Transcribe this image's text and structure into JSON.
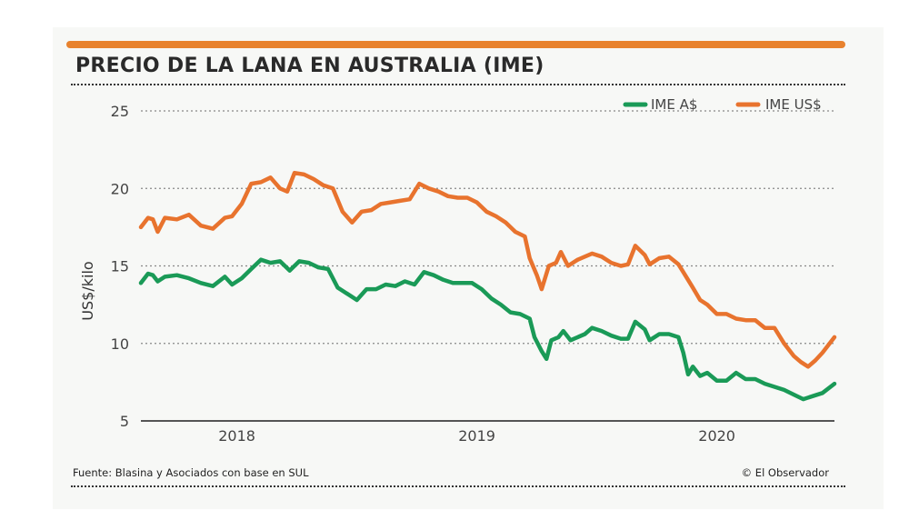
{
  "header": {
    "title": "PRECIO DE LA LANA EN AUSTRALIA (IME)"
  },
  "footer": {
    "source": "Fuente: Blasina y Asociados con base en SUL",
    "credit": "© El Observador"
  },
  "colors": {
    "accent": "#e8822e",
    "green": "#1a9a57",
    "orange": "#e8732e",
    "grid": "#888888"
  },
  "chart_data": {
    "type": "line",
    "title": "PRECIO DE LA LANA EN AUSTRALIA (IME)",
    "xlabel": "",
    "ylabel": "US$/kilo",
    "ylim": [
      5,
      25
    ],
    "yticks": [
      5,
      10,
      15,
      20,
      25
    ],
    "xlim": [
      2017.6,
      2020.49
    ],
    "xticks": [
      2018,
      2019,
      2020
    ],
    "xtick_labels": [
      "2018",
      "2019",
      "2020"
    ],
    "grid": "horizontal dotted",
    "legend": "top-right",
    "series": [
      {
        "name": "IME A$",
        "color": "#1a9a57",
        "points": [
          [
            2017.6,
            13.9
          ],
          [
            2017.63,
            14.5
          ],
          [
            2017.65,
            14.4
          ],
          [
            2017.67,
            14.0
          ],
          [
            2017.7,
            14.3
          ],
          [
            2017.75,
            14.4
          ],
          [
            2017.8,
            14.2
          ],
          [
            2017.85,
            13.9
          ],
          [
            2017.9,
            13.7
          ],
          [
            2017.95,
            14.3
          ],
          [
            2017.98,
            13.8
          ],
          [
            2018.02,
            14.2
          ],
          [
            2018.06,
            14.8
          ],
          [
            2018.1,
            15.4
          ],
          [
            2018.14,
            15.2
          ],
          [
            2018.18,
            15.3
          ],
          [
            2018.22,
            14.7
          ],
          [
            2018.26,
            15.3
          ],
          [
            2018.3,
            15.2
          ],
          [
            2018.34,
            14.9
          ],
          [
            2018.38,
            14.8
          ],
          [
            2018.42,
            13.6
          ],
          [
            2018.46,
            13.2
          ],
          [
            2018.5,
            12.8
          ],
          [
            2018.54,
            13.5
          ],
          [
            2018.58,
            13.5
          ],
          [
            2018.62,
            13.8
          ],
          [
            2018.66,
            13.7
          ],
          [
            2018.7,
            14.0
          ],
          [
            2018.74,
            13.8
          ],
          [
            2018.78,
            14.6
          ],
          [
            2018.82,
            14.4
          ],
          [
            2018.86,
            14.1
          ],
          [
            2018.9,
            13.9
          ],
          [
            2018.94,
            13.9
          ],
          [
            2018.98,
            13.9
          ],
          [
            2019.02,
            13.5
          ],
          [
            2019.06,
            12.9
          ],
          [
            2019.1,
            12.5
          ],
          [
            2019.14,
            12.0
          ],
          [
            2019.18,
            11.9
          ],
          [
            2019.22,
            11.6
          ],
          [
            2019.24,
            10.4
          ],
          [
            2019.27,
            9.5
          ],
          [
            2019.29,
            9.0
          ],
          [
            2019.31,
            10.2
          ],
          [
            2019.34,
            10.4
          ],
          [
            2019.36,
            10.8
          ],
          [
            2019.39,
            10.2
          ],
          [
            2019.42,
            10.4
          ],
          [
            2019.45,
            10.6
          ],
          [
            2019.48,
            11.0
          ],
          [
            2019.52,
            10.8
          ],
          [
            2019.56,
            10.5
          ],
          [
            2019.6,
            10.3
          ],
          [
            2019.63,
            10.3
          ],
          [
            2019.66,
            11.4
          ],
          [
            2019.7,
            10.9
          ],
          [
            2019.72,
            10.2
          ],
          [
            2019.76,
            10.6
          ],
          [
            2019.8,
            10.6
          ],
          [
            2019.84,
            10.4
          ],
          [
            2019.86,
            9.4
          ],
          [
            2019.88,
            8.0
          ],
          [
            2019.9,
            8.5
          ],
          [
            2019.93,
            7.9
          ],
          [
            2019.96,
            8.1
          ],
          [
            2020.0,
            7.6
          ],
          [
            2020.04,
            7.6
          ],
          [
            2020.08,
            8.1
          ],
          [
            2020.12,
            7.7
          ],
          [
            2020.16,
            7.7
          ],
          [
            2020.2,
            7.4
          ],
          [
            2020.24,
            7.2
          ],
          [
            2020.28,
            7.0
          ],
          [
            2020.32,
            6.7
          ],
          [
            2020.36,
            6.4
          ],
          [
            2020.4,
            6.6
          ],
          [
            2020.44,
            6.8
          ],
          [
            2020.49,
            7.4
          ]
        ]
      },
      {
        "name": "IME US$",
        "color": "#e8732e",
        "points": [
          [
            2017.6,
            17.5
          ],
          [
            2017.63,
            18.1
          ],
          [
            2017.65,
            18.0
          ],
          [
            2017.67,
            17.2
          ],
          [
            2017.7,
            18.1
          ],
          [
            2017.75,
            18.0
          ],
          [
            2017.8,
            18.3
          ],
          [
            2017.85,
            17.6
          ],
          [
            2017.9,
            17.4
          ],
          [
            2017.95,
            18.1
          ],
          [
            2017.98,
            18.2
          ],
          [
            2018.02,
            19.0
          ],
          [
            2018.06,
            20.3
          ],
          [
            2018.1,
            20.4
          ],
          [
            2018.14,
            20.7
          ],
          [
            2018.18,
            20.0
          ],
          [
            2018.21,
            19.8
          ],
          [
            2018.24,
            21.0
          ],
          [
            2018.28,
            20.9
          ],
          [
            2018.32,
            20.6
          ],
          [
            2018.36,
            20.2
          ],
          [
            2018.4,
            20.0
          ],
          [
            2018.44,
            18.5
          ],
          [
            2018.48,
            17.8
          ],
          [
            2018.52,
            18.5
          ],
          [
            2018.56,
            18.6
          ],
          [
            2018.6,
            19.0
          ],
          [
            2018.64,
            19.1
          ],
          [
            2018.68,
            19.2
          ],
          [
            2018.72,
            19.3
          ],
          [
            2018.76,
            20.3
          ],
          [
            2018.8,
            20.0
          ],
          [
            2018.84,
            19.8
          ],
          [
            2018.88,
            19.5
          ],
          [
            2018.92,
            19.4
          ],
          [
            2018.96,
            19.4
          ],
          [
            2019.0,
            19.1
          ],
          [
            2019.04,
            18.5
          ],
          [
            2019.08,
            18.2
          ],
          [
            2019.12,
            17.8
          ],
          [
            2019.16,
            17.2
          ],
          [
            2019.2,
            16.9
          ],
          [
            2019.22,
            15.5
          ],
          [
            2019.25,
            14.4
          ],
          [
            2019.27,
            13.5
          ],
          [
            2019.3,
            15.0
          ],
          [
            2019.33,
            15.2
          ],
          [
            2019.35,
            15.9
          ],
          [
            2019.38,
            15.0
          ],
          [
            2019.42,
            15.4
          ],
          [
            2019.45,
            15.6
          ],
          [
            2019.48,
            15.8
          ],
          [
            2019.52,
            15.6
          ],
          [
            2019.56,
            15.2
          ],
          [
            2019.6,
            15.0
          ],
          [
            2019.63,
            15.1
          ],
          [
            2019.66,
            16.3
          ],
          [
            2019.7,
            15.7
          ],
          [
            2019.72,
            15.1
          ],
          [
            2019.76,
            15.5
          ],
          [
            2019.8,
            15.6
          ],
          [
            2019.84,
            15.1
          ],
          [
            2019.86,
            14.6
          ],
          [
            2019.9,
            13.6
          ],
          [
            2019.93,
            12.8
          ],
          [
            2019.96,
            12.5
          ],
          [
            2020.0,
            11.9
          ],
          [
            2020.04,
            11.9
          ],
          [
            2020.08,
            11.6
          ],
          [
            2020.12,
            11.5
          ],
          [
            2020.16,
            11.5
          ],
          [
            2020.2,
            11.0
          ],
          [
            2020.24,
            11.0
          ],
          [
            2020.28,
            10.0
          ],
          [
            2020.32,
            9.2
          ],
          [
            2020.35,
            8.8
          ],
          [
            2020.38,
            8.5
          ],
          [
            2020.41,
            8.9
          ],
          [
            2020.44,
            9.4
          ],
          [
            2020.49,
            10.4
          ]
        ]
      }
    ]
  }
}
